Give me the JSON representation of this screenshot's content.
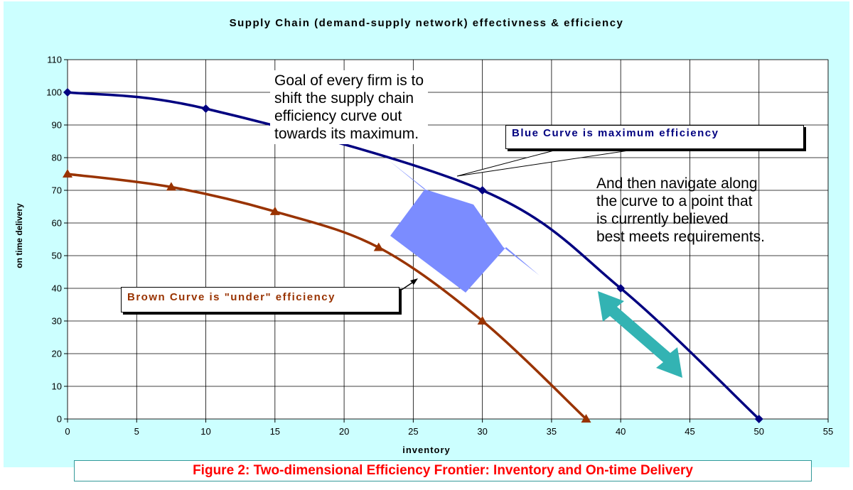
{
  "colors": {
    "background": "#ccffff",
    "blue_series": "#000080",
    "brown_series": "#993300",
    "shift_arrow": "#7b8cff",
    "navigate_arrow": "#33b3b3",
    "caption_text": "#ff0000"
  },
  "chart_data": {
    "type": "line",
    "title": "Supply Chain (demand-supply network) effectivness & efficiency",
    "xlabel": "inventory",
    "ylabel": "on time delivery",
    "xlim": [
      0,
      55
    ],
    "ylim": [
      0,
      110
    ],
    "xticks": [
      0,
      5,
      10,
      15,
      20,
      25,
      30,
      35,
      40,
      45,
      50,
      55
    ],
    "yticks": [
      0,
      10,
      20,
      30,
      40,
      50,
      60,
      70,
      80,
      90,
      100,
      110
    ],
    "grid": true,
    "series": [
      {
        "id": "blue",
        "color": "#000080",
        "marker": "diamond",
        "x": [
          0,
          10,
          30,
          40,
          50
        ],
        "y": [
          100,
          95,
          70,
          40,
          0
        ]
      },
      {
        "id": "brown",
        "color": "#993300",
        "marker": "triangle",
        "x": [
          0,
          7.5,
          15,
          22.5,
          30,
          37.5
        ],
        "y": [
          75,
          71,
          63.5,
          52.5,
          30,
          0
        ]
      }
    ],
    "annotations": {
      "blue_curve": "Blue Curve is maximum efficiency",
      "brown_curve": "Brown Curve is \"under\" efficiency",
      "goal": "Goal of every firm is to\nshift the supply chain\nefficiency curve out\ntowards its maximum.",
      "navigate": "And then navigate along\nthe curve to a point that\nis currently believed\nbest meets requirements."
    }
  },
  "caption": "Figure 2: Two-dimensional Efficiency Frontier: Inventory and On-time Delivery"
}
